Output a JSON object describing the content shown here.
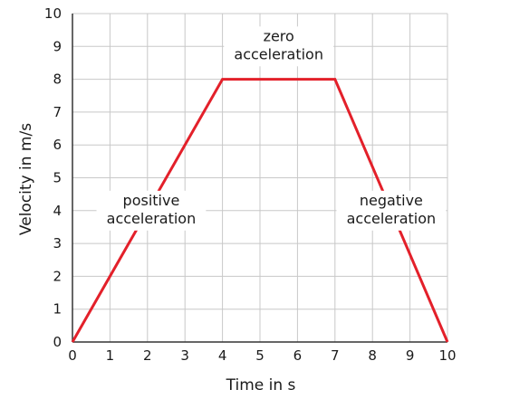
{
  "chart_data": {
    "type": "line",
    "title": "",
    "xlabel": "Time in s",
    "ylabel": "Velocity in m/s",
    "xlim": [
      0,
      10
    ],
    "ylim": [
      0,
      10
    ],
    "x_ticks": [
      0,
      1,
      2,
      3,
      4,
      5,
      6,
      7,
      8,
      9,
      10
    ],
    "y_ticks": [
      0,
      1,
      2,
      3,
      4,
      5,
      6,
      7,
      8,
      9,
      10
    ],
    "grid": true,
    "colors": {
      "line": "#e3202a",
      "grid": "#c8c8c8",
      "axis": "#333333"
    },
    "series": [
      {
        "x": [
          0,
          4,
          7,
          10
        ],
        "y": [
          0,
          8,
          8,
          0
        ]
      }
    ],
    "annotations": [
      {
        "lines": [
          "zero",
          "acceleration"
        ],
        "x": 5.5,
        "y": 9.0
      },
      {
        "lines": [
          "positive",
          "acceleration"
        ],
        "x": 2.1,
        "y": 4.0
      },
      {
        "lines": [
          "negative",
          "acceleration"
        ],
        "x": 8.5,
        "y": 4.0
      }
    ]
  }
}
